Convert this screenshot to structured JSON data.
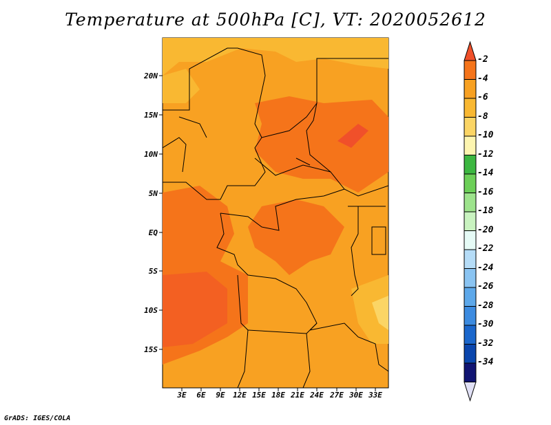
{
  "title": "Temperature at 500hPa [C], VT: 2020052612",
  "credit": "GrADS: IGES/COLA",
  "map": {
    "lat_labels": [
      "20N",
      "15N",
      "10N",
      "5N",
      "EQ",
      "5S",
      "10S",
      "15S"
    ],
    "lon_labels": [
      "3E",
      "6E",
      "9E",
      "12E",
      "15E",
      "18E",
      "21E",
      "24E",
      "27E",
      "30E",
      "33E"
    ]
  },
  "colorbar": {
    "labels": [
      "-2",
      "-4",
      "-6",
      "-8",
      "-10",
      "-12",
      "-14",
      "-16",
      "-18",
      "-20",
      "-22",
      "-24",
      "-26",
      "-28",
      "-30",
      "-32",
      "-34"
    ],
    "colors": [
      "#f0502a",
      "#f5741a",
      "#f8a122",
      "#f9b832",
      "#fbd565",
      "#fdf5b0",
      "#3cb741",
      "#6ccf58",
      "#9de38c",
      "#c9f3c0",
      "#e6fbf6",
      "#b5dcf7",
      "#8ac4f2",
      "#5da8ea",
      "#3c8be0",
      "#1b67cc",
      "#0a46ad",
      "#101472",
      "#e0e0f5"
    ]
  },
  "legend_colors": {
    "field_dominant": "#f8a122",
    "field_warm": "#f5741a",
    "field_hot": "#f0502a",
    "field_cool": "#f9b832",
    "field_coolest": "#fbd565"
  }
}
